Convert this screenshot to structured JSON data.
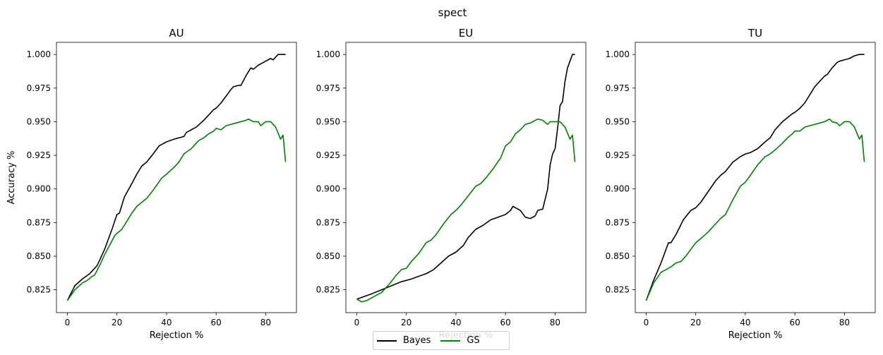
{
  "figure": {
    "suptitle": "spect"
  },
  "colors": {
    "Bayes": "#000000",
    "GS": "#008000"
  },
  "legend": {
    "items": [
      {
        "label": "Bayes",
        "color": "#000000"
      },
      {
        "label": "GS",
        "color": "#008000"
      }
    ]
  },
  "chart_data": [
    {
      "type": "line",
      "title": "AU",
      "xlabel": "Rejection %",
      "ylabel": "Accuracy %",
      "xlim": [
        -4.4,
        92.4
      ],
      "ylim": [
        0.808,
        1.009
      ],
      "xticks": [
        0,
        20,
        40,
        60,
        80
      ],
      "yticks": [
        0.825,
        0.85,
        0.875,
        0.9,
        0.925,
        0.95,
        0.975,
        1.0
      ],
      "ytick_labels": [
        "0.825",
        "0.850",
        "0.875",
        "0.900",
        "0.925",
        "0.950",
        "0.975",
        "1.000"
      ],
      "series": [
        {
          "name": "Bayes",
          "x": [
            0,
            3,
            6,
            9,
            10,
            12,
            15,
            18,
            20,
            21,
            23,
            26,
            28,
            30,
            32,
            35,
            37,
            40,
            43,
            45,
            47,
            48,
            50,
            52,
            55,
            57,
            59,
            60,
            62,
            64,
            66,
            67,
            69,
            70,
            72,
            74,
            75,
            77,
            79,
            80,
            82,
            83,
            85,
            86,
            88
          ],
          "y": [
            0.817,
            0.828,
            0.833,
            0.837,
            0.839,
            0.843,
            0.855,
            0.87,
            0.881,
            0.882,
            0.894,
            0.904,
            0.911,
            0.917,
            0.92,
            0.927,
            0.932,
            0.935,
            0.937,
            0.938,
            0.939,
            0.942,
            0.944,
            0.946,
            0.951,
            0.955,
            0.959,
            0.96,
            0.964,
            0.969,
            0.974,
            0.976,
            0.977,
            0.977,
            0.984,
            0.99,
            0.989,
            0.992,
            0.994,
            0.995,
            0.997,
            0.996,
            1.0,
            1.0,
            1.0
          ]
        },
        {
          "name": "GS",
          "x": [
            0,
            3,
            6,
            8,
            10,
            11,
            13,
            15,
            17,
            19,
            20,
            22,
            24,
            26,
            28,
            30,
            32,
            35,
            38,
            40,
            43,
            45,
            47,
            50,
            53,
            55,
            57,
            59,
            60,
            62,
            64,
            66,
            68,
            70,
            72,
            73,
            75,
            77,
            78,
            80,
            82,
            84,
            86,
            87,
            88
          ],
          "y": [
            0.817,
            0.825,
            0.83,
            0.832,
            0.835,
            0.836,
            0.843,
            0.851,
            0.858,
            0.865,
            0.867,
            0.87,
            0.876,
            0.882,
            0.887,
            0.89,
            0.893,
            0.9,
            0.908,
            0.911,
            0.916,
            0.92,
            0.926,
            0.93,
            0.936,
            0.938,
            0.941,
            0.943,
            0.945,
            0.944,
            0.947,
            0.948,
            0.949,
            0.95,
            0.951,
            0.952,
            0.95,
            0.95,
            0.947,
            0.95,
            0.95,
            0.946,
            0.937,
            0.94,
            0.92
          ]
        }
      ]
    },
    {
      "type": "line",
      "title": "EU",
      "xlabel": "Rejection %",
      "ylabel": "",
      "xlim": [
        -4.4,
        92.4
      ],
      "ylim": [
        0.808,
        1.009
      ],
      "xticks": [
        0,
        20,
        40,
        60,
        80
      ],
      "yticks": [
        0.825,
        0.85,
        0.875,
        0.9,
        0.925,
        0.95,
        0.975,
        1.0
      ],
      "ytick_labels": [
        "0.825",
        "0.850",
        "0.875",
        "0.900",
        "0.925",
        "0.950",
        "0.975",
        "1.000"
      ],
      "series": [
        {
          "name": "Bayes",
          "x": [
            0,
            3,
            6,
            10,
            14,
            18,
            22,
            25,
            28,
            31,
            34,
            37,
            40,
            43,
            45,
            48,
            51,
            54,
            57,
            60,
            62,
            63,
            64,
            66,
            68,
            70,
            72,
            73,
            75,
            77,
            78,
            79,
            80,
            81,
            82,
            83,
            84,
            85,
            87,
            88
          ],
          "y": [
            0.818,
            0.82,
            0.822,
            0.825,
            0.828,
            0.831,
            0.833,
            0.835,
            0.837,
            0.84,
            0.845,
            0.85,
            0.853,
            0.858,
            0.864,
            0.87,
            0.873,
            0.877,
            0.879,
            0.881,
            0.884,
            0.887,
            0.886,
            0.884,
            0.879,
            0.878,
            0.88,
            0.884,
            0.885,
            0.9,
            0.918,
            0.926,
            0.93,
            0.945,
            0.962,
            0.965,
            0.98,
            0.99,
            1.0,
            1.0
          ]
        },
        {
          "name": "GS",
          "x": [
            0,
            2,
            4,
            6,
            8,
            10,
            13,
            16,
            18,
            20,
            22,
            25,
            28,
            30,
            32,
            35,
            38,
            40,
            42,
            45,
            48,
            50,
            52,
            55,
            58,
            60,
            62,
            64,
            66,
            68,
            70,
            72,
            73,
            75,
            77,
            78,
            80,
            82,
            84,
            86,
            87,
            88
          ],
          "y": [
            0.818,
            0.816,
            0.817,
            0.819,
            0.821,
            0.823,
            0.829,
            0.836,
            0.84,
            0.841,
            0.846,
            0.852,
            0.86,
            0.862,
            0.866,
            0.874,
            0.881,
            0.884,
            0.888,
            0.895,
            0.902,
            0.904,
            0.908,
            0.915,
            0.923,
            0.932,
            0.935,
            0.941,
            0.944,
            0.948,
            0.949,
            0.951,
            0.952,
            0.951,
            0.948,
            0.95,
            0.95,
            0.95,
            0.946,
            0.937,
            0.94,
            0.92
          ]
        }
      ]
    },
    {
      "type": "line",
      "title": "TU",
      "xlabel": "Rejection %",
      "ylabel": "",
      "xlim": [
        -4.4,
        92.4
      ],
      "ylim": [
        0.808,
        1.009
      ],
      "xticks": [
        0,
        20,
        40,
        60,
        80
      ],
      "yticks": [
        0.825,
        0.85,
        0.875,
        0.9,
        0.925,
        0.95,
        0.975,
        1.0
      ],
      "ytick_labels": [
        "0.825",
        "0.850",
        "0.875",
        "0.900",
        "0.925",
        "0.950",
        "0.975",
        "1.000"
      ],
      "series": [
        {
          "name": "Bayes",
          "x": [
            0,
            3,
            6,
            9,
            10,
            12,
            15,
            18,
            20,
            22,
            25,
            28,
            30,
            32,
            35,
            38,
            40,
            42,
            45,
            48,
            50,
            52,
            55,
            57,
            59,
            60,
            62,
            64,
            66,
            68,
            70,
            72,
            73,
            75,
            77,
            78,
            80,
            82,
            84,
            86,
            88
          ],
          "y": [
            0.817,
            0.832,
            0.845,
            0.86,
            0.86,
            0.866,
            0.877,
            0.884,
            0.886,
            0.89,
            0.898,
            0.906,
            0.91,
            0.913,
            0.92,
            0.924,
            0.926,
            0.927,
            0.93,
            0.935,
            0.938,
            0.944,
            0.95,
            0.953,
            0.956,
            0.957,
            0.96,
            0.964,
            0.97,
            0.976,
            0.98,
            0.984,
            0.985,
            0.99,
            0.994,
            0.995,
            0.996,
            0.997,
            0.999,
            1.0,
            1.0
          ]
        },
        {
          "name": "GS",
          "x": [
            0,
            3,
            6,
            8,
            10,
            12,
            14,
            16,
            18,
            20,
            22,
            25,
            28,
            30,
            32,
            35,
            38,
            40,
            42,
            45,
            48,
            50,
            52,
            55,
            57,
            59,
            60,
            62,
            64,
            66,
            68,
            70,
            72,
            74,
            75,
            77,
            78,
            80,
            82,
            84,
            86,
            87,
            88
          ],
          "y": [
            0.817,
            0.83,
            0.838,
            0.84,
            0.842,
            0.845,
            0.846,
            0.85,
            0.855,
            0.86,
            0.863,
            0.868,
            0.874,
            0.878,
            0.881,
            0.892,
            0.902,
            0.905,
            0.91,
            0.918,
            0.924,
            0.926,
            0.929,
            0.934,
            0.938,
            0.941,
            0.943,
            0.943,
            0.946,
            0.947,
            0.948,
            0.949,
            0.95,
            0.952,
            0.95,
            0.949,
            0.947,
            0.95,
            0.95,
            0.946,
            0.937,
            0.94,
            0.92
          ]
        }
      ]
    }
  ]
}
